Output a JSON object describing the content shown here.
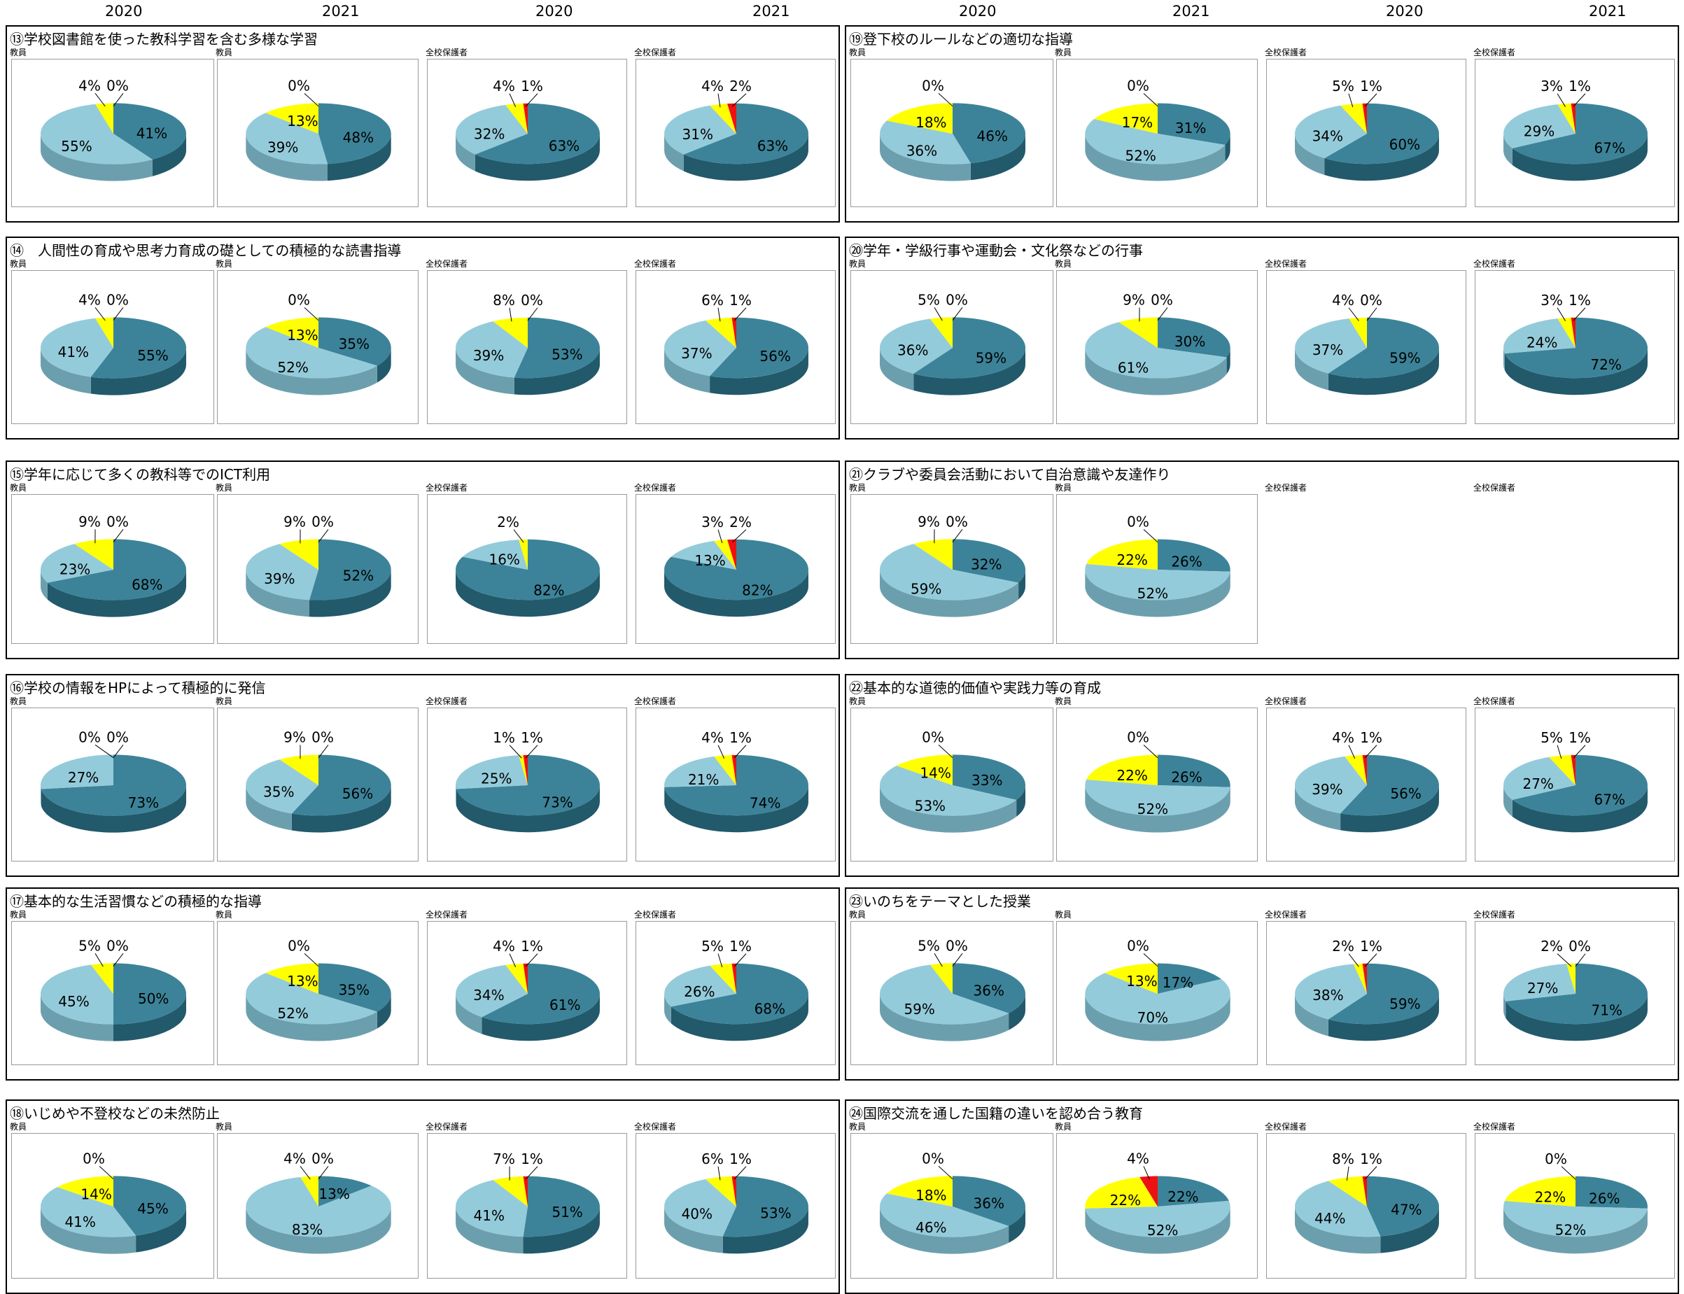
{
  "year_header": [
    "2020",
    "2021",
    "2020",
    "2021",
    "2020",
    "2021",
    "2020",
    "2021"
  ],
  "colors": {
    "dark": "#3c8399",
    "light": "#94cbda",
    "yellow": "#ffff00",
    "red": "#ee1111"
  },
  "chart_data": [
    {
      "type": "pie",
      "title": "⑬学校図書館を使った教科学習を含む多様な学習",
      "panels": [
        {
          "label": "教員",
          "values": [
            41,
            55,
            4,
            0
          ],
          "slice_labels": [
            "41%",
            "55%",
            "4%",
            "0%"
          ]
        },
        {
          "label": "教員",
          "values": [
            48,
            39,
            13,
            0
          ],
          "slice_labels": [
            "48%",
            "39%",
            "13%",
            "0%"
          ]
        },
        {
          "label": "全校保護者",
          "values": [
            63,
            32,
            4,
            1
          ],
          "slice_labels": [
            "63%",
            "32%",
            "4%",
            "1%"
          ]
        },
        {
          "label": "全校保護者",
          "values": [
            63,
            31,
            4,
            2
          ],
          "slice_labels": [
            "63%",
            "31%",
            "4%",
            "2%"
          ]
        }
      ]
    },
    {
      "type": "pie",
      "title": "⑲登下校のルールなどの適切な指導",
      "panels": [
        {
          "label": "教員",
          "values": [
            46,
            36,
            18,
            0
          ],
          "slice_labels": [
            "46%",
            "36%",
            "18%",
            "0%"
          ]
        },
        {
          "label": "教員",
          "values": [
            31,
            52,
            17,
            0
          ],
          "slice_labels": [
            "31%",
            "52%",
            "17%",
            "0%"
          ]
        },
        {
          "label": "全校保護者",
          "values": [
            60,
            34,
            5,
            1
          ],
          "slice_labels": [
            "60%",
            "34%",
            "5%",
            "1%"
          ]
        },
        {
          "label": "全校保護者",
          "values": [
            67,
            29,
            3,
            1
          ],
          "slice_labels": [
            "67%",
            "29%",
            "3%",
            "1%"
          ]
        }
      ]
    },
    {
      "type": "pie",
      "title": "⑭　人間性の育成や思考力育成の礎としての積極的な読書指導",
      "panels": [
        {
          "label": "教員",
          "values": [
            55,
            41,
            4,
            0
          ],
          "slice_labels": [
            "55%",
            "41%",
            "4%",
            "0%"
          ]
        },
        {
          "label": "教員",
          "values": [
            35,
            52,
            13,
            0
          ],
          "slice_labels": [
            "35%",
            "52%",
            "13%",
            "0%"
          ]
        },
        {
          "label": "全校保護者",
          "values": [
            53,
            39,
            8,
            0
          ],
          "slice_labels": [
            "53%",
            "39%",
            "8%",
            "0%"
          ]
        },
        {
          "label": "全校保護者",
          "values": [
            56,
            37,
            6,
            1
          ],
          "slice_labels": [
            "56%",
            "37%",
            "6%",
            "1%"
          ]
        }
      ]
    },
    {
      "type": "pie",
      "title": "⑳学年・学級行事や運動会・文化祭などの行事",
      "panels": [
        {
          "label": "教員",
          "values": [
            59,
            36,
            5,
            0
          ],
          "slice_labels": [
            "59%",
            "36%",
            "5%",
            "0%"
          ]
        },
        {
          "label": "教員",
          "values": [
            30,
            61,
            9,
            0
          ],
          "slice_labels": [
            "30%",
            "61%",
            "9%",
            "0%"
          ]
        },
        {
          "label": "全校保護者",
          "values": [
            59,
            37,
            4,
            0
          ],
          "slice_labels": [
            "59%",
            "37%",
            "4%",
            "0%"
          ]
        },
        {
          "label": "全校保護者",
          "values": [
            72,
            24,
            3,
            1
          ],
          "slice_labels": [
            "72%",
            "24%",
            "3%",
            "1%"
          ]
        }
      ]
    },
    {
      "type": "pie",
      "title": "⑮学年に応じて多くの教科等でのICT利用",
      "panels": [
        {
          "label": "教員",
          "values": [
            68,
            23,
            9,
            0
          ],
          "slice_labels": [
            "68%",
            "23%",
            "9%",
            "0%"
          ]
        },
        {
          "label": "教員",
          "values": [
            52,
            39,
            9,
            0
          ],
          "slice_labels": [
            "52%",
            "39%",
            "9%",
            "0%"
          ]
        },
        {
          "label": "全校保護者",
          "values": [
            82,
            16,
            2
          ],
          "slice_labels": [
            "82%",
            "16%",
            "2%"
          ]
        },
        {
          "label": "全校保護者",
          "values": [
            82,
            13,
            3,
            2
          ],
          "slice_labels": [
            "82%",
            "13%",
            "3%",
            "2%"
          ]
        }
      ]
    },
    {
      "type": "pie",
      "title": "㉑クラブや委員会活動において自治意識や友達作り",
      "panels": [
        {
          "label": "教員",
          "values": [
            32,
            59,
            9,
            0
          ],
          "slice_labels": [
            "32%",
            "59%",
            "9%",
            "0%"
          ]
        },
        {
          "label": "教員",
          "values": [
            26,
            52,
            22,
            0
          ],
          "slice_labels": [
            "26%",
            "52%",
            "22%",
            "0%"
          ]
        },
        {
          "label": "全校保護者",
          "values": [],
          "slice_labels": []
        },
        {
          "label": "全校保護者",
          "values": [],
          "slice_labels": []
        }
      ]
    },
    {
      "type": "pie",
      "title": "⑯学校の情報をHPによって積極的に発信",
      "panels": [
        {
          "label": "教員",
          "values": [
            73,
            27,
            0,
            0
          ],
          "slice_labels": [
            "73%",
            "27%",
            "0%",
            "0%"
          ]
        },
        {
          "label": "教員",
          "values": [
            56,
            35,
            9,
            0
          ],
          "slice_labels": [
            "56%",
            "35%",
            "9%",
            "0%"
          ]
        },
        {
          "label": "全校保護者",
          "values": [
            73,
            25,
            1,
            1
          ],
          "slice_labels": [
            "73%",
            "25%",
            "1%",
            "1%"
          ]
        },
        {
          "label": "全校保護者",
          "values": [
            74,
            21,
            4,
            1
          ],
          "slice_labels": [
            "74%",
            "21%",
            "4%",
            "1%"
          ]
        }
      ]
    },
    {
      "type": "pie",
      "title": "㉒基本的な道徳的価値や実践力等の育成",
      "panels": [
        {
          "label": "教員",
          "values": [
            33,
            53,
            14,
            0
          ],
          "slice_labels": [
            "33%",
            "53%",
            "14%",
            "0%"
          ]
        },
        {
          "label": "教員",
          "values": [
            26,
            52,
            22,
            0
          ],
          "slice_labels": [
            "26%",
            "52%",
            "22%",
            "0%"
          ]
        },
        {
          "label": "全校保護者",
          "values": [
            56,
            39,
            4,
            1
          ],
          "slice_labels": [
            "56%",
            "39%",
            "4%",
            "1%"
          ]
        },
        {
          "label": "全校保護者",
          "values": [
            67,
            27,
            5,
            1
          ],
          "slice_labels": [
            "67%",
            "27%",
            "5%",
            "1%"
          ]
        }
      ]
    },
    {
      "type": "pie",
      "title": "⑰基本的な生活習慣などの積極的な指導",
      "panels": [
        {
          "label": "教員",
          "values": [
            50,
            45,
            5,
            0
          ],
          "slice_labels": [
            "50%",
            "45%",
            "5%",
            "0%"
          ]
        },
        {
          "label": "教員",
          "values": [
            35,
            52,
            13,
            0
          ],
          "slice_labels": [
            "35%",
            "52%",
            "13%",
            "0%"
          ]
        },
        {
          "label": "全校保護者",
          "values": [
            61,
            34,
            4,
            1
          ],
          "slice_labels": [
            "61%",
            "34%",
            "4%",
            "1%"
          ]
        },
        {
          "label": "全校保護者",
          "values": [
            68,
            26,
            5,
            1
          ],
          "slice_labels": [
            "68%",
            "26%",
            "5%",
            "1%"
          ]
        }
      ]
    },
    {
      "type": "pie",
      "title": "㉓いのちをテーマとした授業",
      "panels": [
        {
          "label": "教員",
          "values": [
            36,
            59,
            5,
            0
          ],
          "slice_labels": [
            "36%",
            "59%",
            "5%",
            "0%"
          ]
        },
        {
          "label": "教員",
          "values": [
            17,
            70,
            13,
            0
          ],
          "slice_labels": [
            "17%",
            "70%",
            "13%",
            "0%"
          ]
        },
        {
          "label": "全校保護者",
          "values": [
            59,
            38,
            2,
            1
          ],
          "slice_labels": [
            "59%",
            "38%",
            "2%",
            "1%"
          ]
        },
        {
          "label": "全校保護者",
          "values": [
            71,
            27,
            2,
            0
          ],
          "slice_labels": [
            "71%",
            "27%",
            "2%",
            "0%"
          ]
        }
      ]
    },
    {
      "type": "pie",
      "title": "⑱いじめや不登校などの未然防止",
      "panels": [
        {
          "label": "教員",
          "values": [
            45,
            41,
            14,
            0
          ],
          "slice_labels": [
            "45%",
            "41%",
            "14%",
            "0%"
          ]
        },
        {
          "label": "教員",
          "values": [
            13,
            83,
            4,
            0
          ],
          "slice_labels": [
            "13%",
            "83%",
            "4%",
            "0%"
          ]
        },
        {
          "label": "全校保護者",
          "values": [
            51,
            41,
            7,
            1
          ],
          "slice_labels": [
            "51%",
            "41%",
            "7%",
            "1%"
          ]
        },
        {
          "label": "全校保護者",
          "values": [
            53,
            40,
            6,
            1
          ],
          "slice_labels": [
            "53%",
            "40%",
            "6%",
            "1%"
          ]
        }
      ]
    },
    {
      "type": "pie",
      "title": "㉔国際交流を通した国籍の違いを認め合う教育",
      "panels": [
        {
          "label": "教員",
          "values": [
            36,
            46,
            18,
            0
          ],
          "slice_labels": [
            "36%",
            "46%",
            "18%",
            "0%"
          ]
        },
        {
          "label": "教員",
          "values": [
            22,
            52,
            22,
            4
          ],
          "slice_labels": [
            "22%",
            "52%",
            "22%",
            "4%"
          ]
        },
        {
          "label": "全校保護者",
          "values": [
            47,
            44,
            8,
            1
          ],
          "slice_labels": [
            "47%",
            "44%",
            "8%",
            "1%"
          ]
        },
        {
          "label": "全校保護者",
          "values": [
            26,
            52,
            22,
            0
          ],
          "slice_labels": [
            "26%",
            "52%",
            "22%",
            "0%"
          ]
        }
      ]
    }
  ]
}
